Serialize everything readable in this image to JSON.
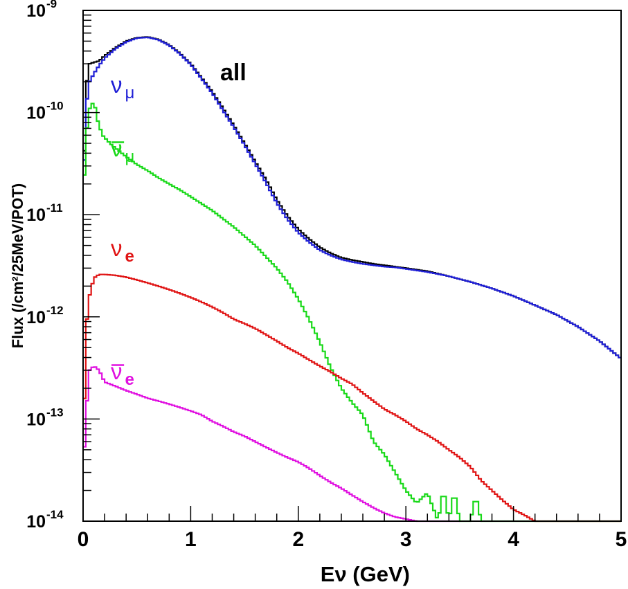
{
  "chart_data": {
    "type": "line",
    "step": true,
    "xlabel": "Eν (GeV)",
    "ylabel": "Flux (/cm²/25MeV/POT)",
    "xlim": [
      0,
      5
    ],
    "ylim": [
      1e-14,
      1e-09
    ],
    "yscale": "log",
    "grid": false,
    "x_ticks": [
      {
        "value": 0,
        "label": "0"
      },
      {
        "value": 1,
        "label": "1"
      },
      {
        "value": 2,
        "label": "2"
      },
      {
        "value": 3,
        "label": "3"
      },
      {
        "value": 4,
        "label": "4"
      },
      {
        "value": 5,
        "label": "5"
      }
    ],
    "y_ticks": [
      {
        "value": 1e-09,
        "mant": "10",
        "exp": "-9"
      },
      {
        "value": 1e-10,
        "mant": "10",
        "exp": "-10"
      },
      {
        "value": 1e-11,
        "mant": "10",
        "exp": "-11"
      },
      {
        "value": 1e-12,
        "mant": "10",
        "exp": "-12"
      },
      {
        "value": 1e-13,
        "mant": "10",
        "exp": "-13"
      },
      {
        "value": 1e-14,
        "mant": "10",
        "exp": "-14"
      }
    ],
    "series": [
      {
        "name": "all",
        "color": "#000000",
        "label_base": "all",
        "label_sub": "",
        "label_bar": false,
        "points": [
          [
            0,
            1.5e-11
          ],
          [
            0.03,
            1.8e-10
          ],
          [
            0.06,
            3e-10
          ],
          [
            0.1,
            3.1e-10
          ],
          [
            0.15,
            3.2e-10
          ],
          [
            0.2,
            3.6e-10
          ],
          [
            0.3,
            4.3e-10
          ],
          [
            0.4,
            5e-10
          ],
          [
            0.5,
            5.4e-10
          ],
          [
            0.6,
            5.5e-10
          ],
          [
            0.7,
            5.2e-10
          ],
          [
            0.8,
            4.6e-10
          ],
          [
            0.9,
            3.8e-10
          ],
          [
            1.0,
            3e-10
          ],
          [
            1.1,
            2.2e-10
          ],
          [
            1.2,
            1.6e-10
          ],
          [
            1.3,
            1.1e-10
          ],
          [
            1.4,
            7.5e-11
          ],
          [
            1.5,
            5e-11
          ],
          [
            1.6,
            3.3e-11
          ],
          [
            1.7,
            2.2e-11
          ],
          [
            1.8,
            1.4e-11
          ],
          [
            1.9,
            9.7e-12
          ],
          [
            2.0,
            7.2e-12
          ],
          [
            2.1,
            5.8e-12
          ],
          [
            2.2,
            4.8e-12
          ],
          [
            2.3,
            4.2e-12
          ],
          [
            2.4,
            3.8e-12
          ],
          [
            2.5,
            3.6e-12
          ],
          [
            2.6,
            3.45e-12
          ],
          [
            2.7,
            3.3e-12
          ],
          [
            2.8,
            3.2e-12
          ],
          [
            2.9,
            3.1e-12
          ],
          [
            3.0,
            3e-12
          ],
          [
            3.2,
            2.8e-12
          ],
          [
            3.4,
            2.5e-12
          ],
          [
            3.6,
            2.2e-12
          ],
          [
            3.8,
            1.9e-12
          ],
          [
            4.0,
            1.6e-12
          ],
          [
            4.2,
            1.3e-12
          ],
          [
            4.4,
            1.05e-12
          ],
          [
            4.6,
            8e-13
          ],
          [
            4.8,
            5.8e-13
          ],
          [
            5.0,
            3.9e-13
          ]
        ]
      },
      {
        "name": "νμ",
        "color": "#1f1fd6",
        "label_base": "ν",
        "label_sub": "μ",
        "label_bar": false,
        "points": [
          [
            0,
            1.4e-11
          ],
          [
            0.03,
            1.2e-10
          ],
          [
            0.06,
            2e-10
          ],
          [
            0.1,
            2.4e-10
          ],
          [
            0.15,
            2.9e-10
          ],
          [
            0.2,
            3.4e-10
          ],
          [
            0.3,
            4.2e-10
          ],
          [
            0.4,
            4.9e-10
          ],
          [
            0.5,
            5.35e-10
          ],
          [
            0.6,
            5.45e-10
          ],
          [
            0.7,
            5.15e-10
          ],
          [
            0.8,
            4.55e-10
          ],
          [
            0.9,
            3.75e-10
          ],
          [
            1.0,
            2.95e-10
          ],
          [
            1.1,
            2.15e-10
          ],
          [
            1.2,
            1.55e-10
          ],
          [
            1.3,
            1.05e-10
          ],
          [
            1.4,
            7.2e-11
          ],
          [
            1.5,
            4.8e-11
          ],
          [
            1.6,
            3.15e-11
          ],
          [
            1.7,
            2.05e-11
          ],
          [
            1.8,
            1.3e-11
          ],
          [
            1.9,
            9e-12
          ],
          [
            2.0,
            6.7e-12
          ],
          [
            2.1,
            5.4e-12
          ],
          [
            2.2,
            4.5e-12
          ],
          [
            2.3,
            4e-12
          ],
          [
            2.4,
            3.65e-12
          ],
          [
            2.5,
            3.45e-12
          ],
          [
            2.6,
            3.3e-12
          ],
          [
            2.7,
            3.2e-12
          ],
          [
            2.8,
            3.1e-12
          ],
          [
            2.9,
            3.05e-12
          ],
          [
            3.0,
            2.95e-12
          ],
          [
            3.2,
            2.75e-12
          ],
          [
            3.4,
            2.5e-12
          ],
          [
            3.6,
            2.2e-12
          ],
          [
            3.8,
            1.9e-12
          ],
          [
            4.0,
            1.6e-12
          ],
          [
            4.2,
            1.3e-12
          ],
          [
            4.4,
            1.05e-12
          ],
          [
            4.6,
            8e-13
          ],
          [
            4.8,
            5.8e-13
          ],
          [
            5.0,
            3.9e-13
          ]
        ]
      },
      {
        "name": "ν̄μ",
        "color": "#19d919",
        "label_base": "ν",
        "label_sub": "μ",
        "label_bar": true,
        "points": [
          [
            0,
            1.2e-11
          ],
          [
            0.025,
            5e-11
          ],
          [
            0.05,
            1e-10
          ],
          [
            0.08,
            1.25e-10
          ],
          [
            0.11,
            1.15e-10
          ],
          [
            0.14,
            8e-11
          ],
          [
            0.18,
            6e-11
          ],
          [
            0.25,
            5e-11
          ],
          [
            0.3,
            4.5e-11
          ],
          [
            0.4,
            3.7e-11
          ],
          [
            0.5,
            3.1e-11
          ],
          [
            0.6,
            2.7e-11
          ],
          [
            0.7,
            2.3e-11
          ],
          [
            0.8,
            2e-11
          ],
          [
            0.9,
            1.75e-11
          ],
          [
            1.0,
            1.5e-11
          ],
          [
            1.2,
            1.1e-11
          ],
          [
            1.4,
            7.6e-12
          ],
          [
            1.6,
            5e-12
          ],
          [
            1.8,
            3e-12
          ],
          [
            1.9,
            2.2e-12
          ],
          [
            2.0,
            1.5e-12
          ],
          [
            2.1,
            9.5e-13
          ],
          [
            2.2,
            5.7e-13
          ],
          [
            2.3,
            3.2e-13
          ],
          [
            2.4,
            2e-13
          ],
          [
            2.5,
            1.45e-13
          ],
          [
            2.6,
            1.1e-13
          ],
          [
            2.7,
            6e-14
          ],
          [
            2.8,
            4.5e-14
          ],
          [
            2.9,
            3e-14
          ],
          [
            3.0,
            2e-14
          ],
          [
            3.1,
            1.5e-14
          ],
          [
            3.2,
            1.9e-14
          ],
          [
            3.3,
            1e-14
          ],
          [
            3.35,
            2.1e-14
          ],
          [
            3.4,
            1e-14
          ],
          [
            3.45,
            2e-14
          ],
          [
            3.5,
            1e-14
          ],
          [
            3.6,
            1e-14
          ],
          [
            3.65,
            1.8e-14
          ],
          [
            3.7,
            1e-14
          ],
          [
            5.0,
            1e-14
          ]
        ]
      },
      {
        "name": "νe",
        "color": "#e01414",
        "label_base": "ν",
        "label_sub": "e",
        "label_bar": false,
        "points": [
          [
            0,
            5e-14
          ],
          [
            0.03,
            8e-13
          ],
          [
            0.06,
            1.6e-12
          ],
          [
            0.1,
            2.4e-12
          ],
          [
            0.15,
            2.6e-12
          ],
          [
            0.2,
            2.6e-12
          ],
          [
            0.3,
            2.55e-12
          ],
          [
            0.4,
            2.45e-12
          ],
          [
            0.5,
            2.3e-12
          ],
          [
            0.6,
            2.15e-12
          ],
          [
            0.7,
            2e-12
          ],
          [
            0.8,
            1.85e-12
          ],
          [
            0.9,
            1.7e-12
          ],
          [
            1.0,
            1.55e-12
          ],
          [
            1.1,
            1.4e-12
          ],
          [
            1.2,
            1.25e-12
          ],
          [
            1.3,
            1.1e-12
          ],
          [
            1.4,
            9.5e-13
          ],
          [
            1.5,
            8.6e-13
          ],
          [
            1.6,
            7.7e-13
          ],
          [
            1.7,
            6.7e-13
          ],
          [
            1.8,
            5.8e-13
          ],
          [
            1.9,
            5e-13
          ],
          [
            2.0,
            4.4e-13
          ],
          [
            2.1,
            3.8e-13
          ],
          [
            2.2,
            3.3e-13
          ],
          [
            2.3,
            2.9e-13
          ],
          [
            2.4,
            2.5e-13
          ],
          [
            2.5,
            2.2e-13
          ],
          [
            2.6,
            1.8e-13
          ],
          [
            2.7,
            1.5e-13
          ],
          [
            2.8,
            1.25e-13
          ],
          [
            2.9,
            1.1e-13
          ],
          [
            3.0,
            9.5e-14
          ],
          [
            3.1,
            8e-14
          ],
          [
            3.2,
            7e-14
          ],
          [
            3.3,
            6e-14
          ],
          [
            3.4,
            5e-14
          ],
          [
            3.5,
            4.2e-14
          ],
          [
            3.6,
            3.4e-14
          ],
          [
            3.7,
            2.5e-14
          ],
          [
            3.8,
            2e-14
          ],
          [
            3.9,
            1.6e-14
          ],
          [
            4.0,
            1.3e-14
          ],
          [
            4.1,
            1.15e-14
          ],
          [
            4.2,
            1e-14
          ],
          [
            5.0,
            1e-14
          ]
        ]
      },
      {
        "name": "ν̄e",
        "color": "#e010e0",
        "label_base": "ν",
        "label_sub": "e",
        "label_bar": true,
        "points": [
          [
            0,
            3e-14
          ],
          [
            0.03,
            1.2e-13
          ],
          [
            0.06,
            3e-13
          ],
          [
            0.1,
            3.3e-13
          ],
          [
            0.15,
            3e-13
          ],
          [
            0.2,
            2.3e-13
          ],
          [
            0.3,
            2.1e-13
          ],
          [
            0.4,
            1.9e-13
          ],
          [
            0.5,
            1.75e-13
          ],
          [
            0.6,
            1.6e-13
          ],
          [
            0.7,
            1.5e-13
          ],
          [
            0.8,
            1.4e-13
          ],
          [
            0.9,
            1.3e-13
          ],
          [
            1.0,
            1.2e-13
          ],
          [
            1.1,
            1.1e-13
          ],
          [
            1.2,
            9.5e-14
          ],
          [
            1.3,
            8.5e-14
          ],
          [
            1.4,
            7.5e-14
          ],
          [
            1.5,
            6.8e-14
          ],
          [
            1.6,
            6e-14
          ],
          [
            1.7,
            5.3e-14
          ],
          [
            1.8,
            4.7e-14
          ],
          [
            1.9,
            4.2e-14
          ],
          [
            2.0,
            3.8e-14
          ],
          [
            2.1,
            3.3e-14
          ],
          [
            2.2,
            2.8e-14
          ],
          [
            2.3,
            2.4e-14
          ],
          [
            2.4,
            2.1e-14
          ],
          [
            2.5,
            1.8e-14
          ],
          [
            2.6,
            1.55e-14
          ],
          [
            2.7,
            1.35e-14
          ],
          [
            2.8,
            1.2e-14
          ],
          [
            2.9,
            1.1e-14
          ],
          [
            3.0,
            1.05e-14
          ],
          [
            3.1,
            1e-14
          ],
          [
            3.5,
            1e-14
          ]
        ]
      }
    ]
  }
}
